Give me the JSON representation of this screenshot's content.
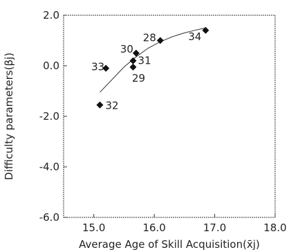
{
  "chart_data": {
    "type": "scatter",
    "xlabel": "Average Age of Skill Acquisition(x̄j)",
    "ylabel": "Difficulty parameters(βj)",
    "xlim": [
      14.5,
      18.0
    ],
    "ylim": [
      -6.0,
      2.0
    ],
    "xticks": [
      "15.0",
      "16.0",
      "17.0",
      "18.0"
    ],
    "yticks": [
      "2.0",
      "0.0",
      "-2.0",
      "-4.0",
      "-6.0"
    ],
    "xtick_values": [
      15.0,
      16.0,
      17.0,
      18.0
    ],
    "ytick_values": [
      2.0,
      0.0,
      -2.0,
      -4.0,
      -6.0
    ],
    "points": [
      {
        "label": "32",
        "x": 15.1,
        "y": -1.55
      },
      {
        "label": "33",
        "x": 15.2,
        "y": -0.1
      },
      {
        "label": "30",
        "x": 15.7,
        "y": 0.5
      },
      {
        "label": "31",
        "x": 15.65,
        "y": 0.2
      },
      {
        "label": "29",
        "x": 15.65,
        "y": -0.05
      },
      {
        "label": "28",
        "x": 16.1,
        "y": 1.0
      },
      {
        "label": "34",
        "x": 16.85,
        "y": 1.4
      }
    ],
    "fit_curve": {
      "x": [
        15.1,
        15.3,
        15.5,
        15.7,
        15.9,
        16.1,
        16.3,
        16.5,
        16.7,
        16.85
      ],
      "y": [
        -1.05,
        -0.55,
        -0.05,
        0.35,
        0.7,
        0.95,
        1.15,
        1.3,
        1.42,
        1.5
      ]
    },
    "grid": false,
    "legend": "none"
  }
}
